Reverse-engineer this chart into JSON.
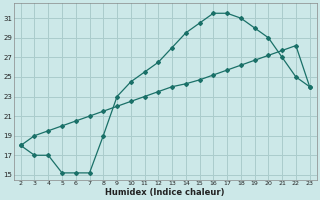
{
  "xlabel": "Humidex (Indice chaleur)",
  "bg_color": "#cce8e8",
  "grid_color": "#aacccc",
  "line_color": "#1a7068",
  "line1_x": [
    2,
    3,
    4,
    5,
    6,
    7,
    8,
    9,
    10,
    11,
    12,
    13,
    14,
    15,
    16,
    17,
    18,
    19,
    20,
    21,
    22,
    23
  ],
  "line1_y": [
    18.0,
    17.0,
    17.0,
    15.2,
    15.2,
    15.2,
    19.0,
    23.0,
    24.5,
    25.5,
    26.5,
    28.0,
    29.5,
    30.5,
    31.5,
    31.5,
    31.0,
    30.0,
    29.0,
    27.0,
    25.0,
    24.0
  ],
  "line2_x": [
    2,
    3,
    4,
    5,
    6,
    7,
    8,
    9,
    10,
    11,
    12,
    13,
    14,
    15,
    16,
    17,
    18,
    19,
    20,
    21,
    22,
    23
  ],
  "line2_y": [
    18.0,
    19.0,
    19.5,
    20.0,
    20.5,
    21.0,
    21.5,
    22.0,
    22.5,
    23.0,
    23.5,
    24.0,
    24.3,
    24.7,
    25.2,
    25.7,
    26.2,
    26.7,
    27.2,
    27.7,
    28.2,
    24.0
  ],
  "xlim": [
    1.5,
    23.5
  ],
  "ylim": [
    14.5,
    32.5
  ],
  "yticks": [
    15,
    17,
    19,
    21,
    23,
    25,
    27,
    29,
    31
  ],
  "xticks": [
    2,
    3,
    4,
    5,
    6,
    7,
    8,
    9,
    10,
    11,
    12,
    13,
    14,
    15,
    16,
    17,
    18,
    19,
    20,
    21,
    22,
    23
  ],
  "tick_fontsize": 5.0,
  "xlabel_fontsize": 6.0
}
